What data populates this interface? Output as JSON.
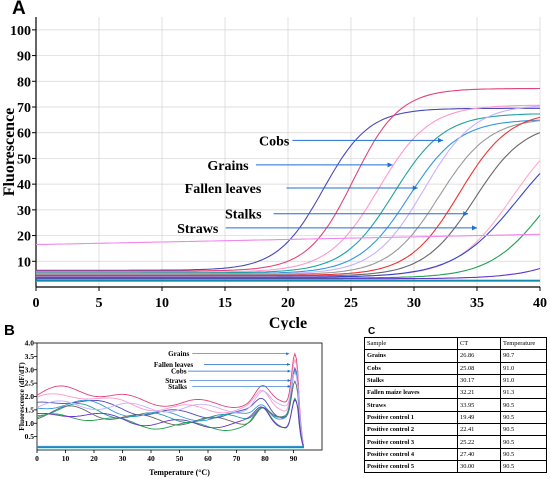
{
  "panels": {
    "a": "A",
    "b": "B",
    "c": "C"
  },
  "chart_a": {
    "type": "line",
    "xlabel": "Cycle",
    "ylabel": "Fluorescence",
    "xlim": [
      0,
      40
    ],
    "ylim": [
      0,
      105
    ],
    "xticks": [
      0,
      5,
      10,
      15,
      20,
      25,
      30,
      35,
      40
    ],
    "yticks": [
      10,
      20,
      30,
      40,
      50,
      60,
      70,
      80,
      90,
      100
    ],
    "annotations": [
      {
        "label": "Cobs",
        "text_x": 17.7,
        "y": 57,
        "arrow_to_x": 32.3
      },
      {
        "label": "Grains",
        "text_x": 13.6,
        "y": 47.5,
        "arrow_to_x": 28.3
      },
      {
        "label": "Fallen leaves",
        "text_x": 11.8,
        "y": 38.5,
        "arrow_to_x": 30.3
      },
      {
        "label": "Stalks",
        "text_x": 15.0,
        "y": 28.5,
        "arrow_to_x": 34.3
      },
      {
        "label": "Straws",
        "text_x": 11.2,
        "y": 23.0,
        "arrow_to_x": 35.0
      }
    ],
    "series": [
      {
        "color": "#4a4ab8",
        "base": 6.5,
        "plateau": 63,
        "mid": 22.8,
        "k": 0.55
      },
      {
        "color": "#e0457a",
        "base": 6.2,
        "plateau": 71,
        "mid": 25.2,
        "k": 0.55
      },
      {
        "color": "#ff99cc",
        "base": 5.8,
        "plateau": 65,
        "mid": 27.2,
        "k": 0.5
      },
      {
        "color": "#20a0a0",
        "base": 5.5,
        "plateau": 62,
        "mid": 28.4,
        "k": 0.5
      },
      {
        "color": "#3399dd",
        "base": 5.2,
        "plateau": 60,
        "mid": 29.6,
        "k": 0.5
      },
      {
        "color": "#c8b0ff",
        "base": 5.0,
        "plateau": 66,
        "mid": 30.8,
        "k": 0.5
      },
      {
        "color": "#999999",
        "base": 4.8,
        "plateau": 61,
        "mid": 32.0,
        "k": 0.5
      },
      {
        "color": "#ee3333",
        "base": 4.5,
        "plateau": 64,
        "mid": 33.6,
        "k": 0.5
      },
      {
        "color": "#666666",
        "base": 4.2,
        "plateau": 60,
        "mid": 34.8,
        "k": 0.5
      },
      {
        "color": "#ffaacc",
        "base": 4.0,
        "plateau": 62,
        "mid": 37.8,
        "k": 0.45
      },
      {
        "color": "#3344cc",
        "base": 3.8,
        "plateau": 60,
        "mid": 38.2,
        "k": 0.4
      },
      {
        "color": "#22a050",
        "base": 3.5,
        "plateau": 55,
        "mid": 40.5,
        "k": 0.45
      },
      {
        "color": "#6633cc",
        "base": 3.2,
        "plateau": 40,
        "mid": 45.5,
        "k": 0.4
      },
      {
        "color": "#ee88ee",
        "base": 16.5,
        "plateau": 0,
        "mid": 60,
        "k": 0.3,
        "slope": 0.1
      },
      {
        "color": "#006699",
        "base": 2.6,
        "plateau": 0,
        "mid": 60,
        "k": 0.3
      },
      {
        "color": "#00cccc",
        "base": 2.2,
        "plateau": 0,
        "mid": 60,
        "k": 0.3
      }
    ]
  },
  "chart_b": {
    "type": "line",
    "xlabel": "Temperature (°C)",
    "ylabel": "Fluorescence (dF/dT)",
    "xlim": [
      0,
      100
    ],
    "ylim": [
      0,
      4.0
    ],
    "xticks": [
      0,
      10,
      20,
      30,
      40,
      50,
      60,
      70,
      80,
      90
    ],
    "yticks": [
      "0.5",
      "1.0",
      "1.5",
      "2.0",
      "2.5",
      "3.0",
      "3.5",
      "4.0"
    ],
    "annotations": [
      {
        "label": "Grains",
        "text_x": 46,
        "y": 3.6,
        "arrow_to_x": 88.5
      },
      {
        "label": "Fallen leaves",
        "text_x": 41,
        "y": 3.2,
        "arrow_to_x": 88.8
      },
      {
        "label": "Cobs",
        "text_x": 47,
        "y": 2.95,
        "arrow_to_x": 89.0
      },
      {
        "label": "Straws",
        "text_x": 45,
        "y": 2.6,
        "arrow_to_x": 89.0
      },
      {
        "label": "Stalks",
        "text_x": 46,
        "y": 2.38,
        "arrow_to_x": 89.0
      }
    ],
    "series": [
      {
        "color": "#e0457a",
        "start": 1.9,
        "hump": 2.3,
        "peak": 3.85
      },
      {
        "color": "#ff99cc",
        "start": 1.7,
        "hump": 2.1,
        "peak": 3.7
      },
      {
        "color": "#4a4ab8",
        "start": 1.5,
        "hump": 1.9,
        "peak": 3.3
      },
      {
        "color": "#3399dd",
        "start": 1.4,
        "hump": 1.8,
        "peak": 3.1
      },
      {
        "color": "#20a0a0",
        "start": 1.3,
        "hump": 1.6,
        "peak": 2.9
      },
      {
        "color": "#666666",
        "start": 1.2,
        "hump": 1.5,
        "peak": 2.6
      },
      {
        "color": "#c8b0ff",
        "start": 1.6,
        "hump": 1.7,
        "peak": 3.0
      },
      {
        "color": "#22a050",
        "start": 1.0,
        "hump": 1.3,
        "peak": 2.2
      },
      {
        "color": "#6633cc",
        "start": 1.1,
        "hump": 1.4,
        "peak": 2.1
      }
    ]
  },
  "table_c": {
    "headers": [
      "Sample",
      "CT",
      "Temperature"
    ],
    "rows": [
      [
        "Grains",
        "26.86",
        "90.7"
      ],
      [
        "Cobs",
        "25.08",
        "91.0"
      ],
      [
        "Stalks",
        "30.17",
        "91.0"
      ],
      [
        "Fallen maize leaves",
        "32.21",
        "91.3"
      ],
      [
        "Straws",
        "33.95",
        "90.5"
      ],
      [
        "Positive control 1",
        "19.49",
        "90.5"
      ],
      [
        "Positive control 2",
        "22.41",
        "90.5"
      ],
      [
        "Positive control 3",
        "25.22",
        "90.5"
      ],
      [
        "Positive control 4",
        "27.40",
        "90.5"
      ],
      [
        "Positive control 5",
        "30.00",
        "90.5"
      ]
    ]
  }
}
